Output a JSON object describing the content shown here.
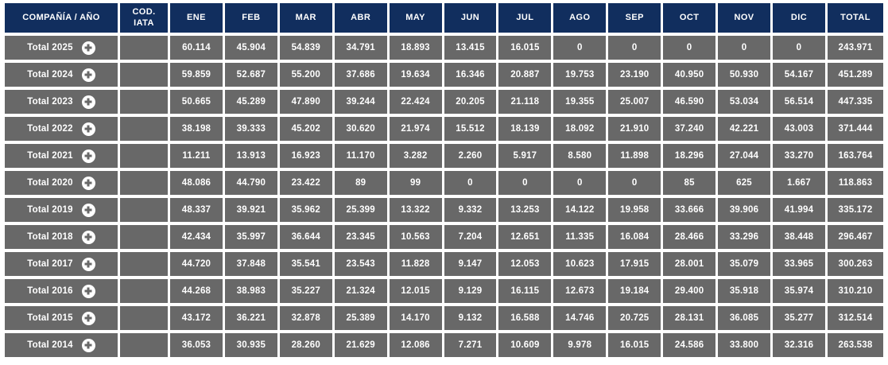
{
  "colors": {
    "header_bg": "#112e5e",
    "row_bg": "#686868",
    "text": "#ffffff",
    "grid": "#ffffff"
  },
  "icons": {
    "expand": "plus-circle-icon"
  },
  "table": {
    "columns": [
      "COMPAÑÍA / AÑO",
      "COD. IATA",
      "ENE",
      "FEB",
      "MAR",
      "ABR",
      "MAY",
      "JUN",
      "JUL",
      "AGO",
      "SEP",
      "OCT",
      "NOV",
      "DIC",
      "TOTAL"
    ],
    "rows": [
      {
        "label": "Total 2025",
        "iata": "",
        "values": [
          "60.114",
          "45.904",
          "54.839",
          "34.791",
          "18.893",
          "13.415",
          "16.015",
          "0",
          "0",
          "0",
          "0",
          "0",
          "243.971"
        ]
      },
      {
        "label": "Total 2024",
        "iata": "",
        "values": [
          "59.859",
          "52.687",
          "55.200",
          "37.686",
          "19.634",
          "16.346",
          "20.887",
          "19.753",
          "23.190",
          "40.950",
          "50.930",
          "54.167",
          "451.289"
        ]
      },
      {
        "label": "Total 2023",
        "iata": "",
        "values": [
          "50.665",
          "45.289",
          "47.890",
          "39.244",
          "22.424",
          "20.205",
          "21.118",
          "19.355",
          "25.007",
          "46.590",
          "53.034",
          "56.514",
          "447.335"
        ]
      },
      {
        "label": "Total 2022",
        "iata": "",
        "values": [
          "38.198",
          "39.333",
          "45.202",
          "30.620",
          "21.974",
          "15.512",
          "18.139",
          "18.092",
          "21.910",
          "37.240",
          "42.221",
          "43.003",
          "371.444"
        ]
      },
      {
        "label": "Total 2021",
        "iata": "",
        "values": [
          "11.211",
          "13.913",
          "16.923",
          "11.170",
          "3.282",
          "2.260",
          "5.917",
          "8.580",
          "11.898",
          "18.296",
          "27.044",
          "33.270",
          "163.764"
        ]
      },
      {
        "label": "Total 2020",
        "iata": "",
        "values": [
          "48.086",
          "44.790",
          "23.422",
          "89",
          "99",
          "0",
          "0",
          "0",
          "0",
          "85",
          "625",
          "1.667",
          "118.863"
        ]
      },
      {
        "label": "Total 2019",
        "iata": "",
        "values": [
          "48.337",
          "39.921",
          "35.962",
          "25.399",
          "13.322",
          "9.332",
          "13.253",
          "14.122",
          "19.958",
          "33.666",
          "39.906",
          "41.994",
          "335.172"
        ]
      },
      {
        "label": "Total 2018",
        "iata": "",
        "values": [
          "42.434",
          "35.997",
          "36.644",
          "23.345",
          "10.563",
          "7.204",
          "12.651",
          "11.335",
          "16.084",
          "28.466",
          "33.296",
          "38.448",
          "296.467"
        ]
      },
      {
        "label": "Total 2017",
        "iata": "",
        "values": [
          "44.720",
          "37.848",
          "35.541",
          "23.543",
          "11.828",
          "9.147",
          "12.053",
          "10.623",
          "17.915",
          "28.001",
          "35.079",
          "33.965",
          "300.263"
        ]
      },
      {
        "label": "Total 2016",
        "iata": "",
        "values": [
          "44.268",
          "38.983",
          "35.227",
          "21.324",
          "12.015",
          "9.129",
          "16.115",
          "12.673",
          "19.184",
          "29.400",
          "35.918",
          "35.974",
          "310.210"
        ]
      },
      {
        "label": "Total 2015",
        "iata": "",
        "values": [
          "43.172",
          "36.221",
          "32.878",
          "25.389",
          "14.170",
          "9.132",
          "16.588",
          "14.746",
          "20.725",
          "28.131",
          "36.085",
          "35.277",
          "312.514"
        ]
      },
      {
        "label": "Total 2014",
        "iata": "",
        "values": [
          "36.053",
          "30.935",
          "28.260",
          "21.629",
          "12.086",
          "7.271",
          "10.609",
          "9.978",
          "16.015",
          "24.586",
          "33.800",
          "32.316",
          "263.538"
        ]
      }
    ]
  }
}
